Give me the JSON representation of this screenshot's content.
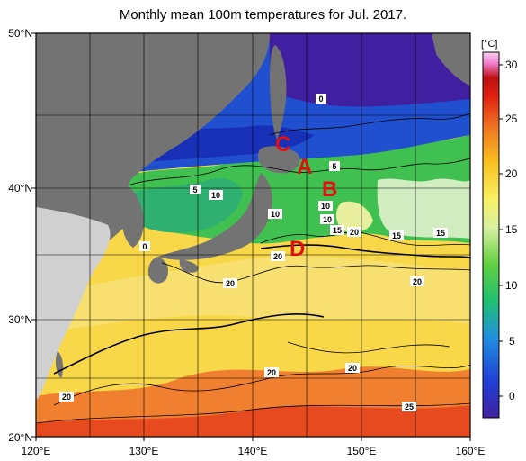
{
  "title": "Monthly mean 100m temperatures for Jul. 2017.",
  "lat_labels": [
    "50°N",
    "40°N",
    "30°N",
    "20°N"
  ],
  "lon_labels": [
    "120°E",
    "130°E",
    "140°E",
    "150°E",
    "160°E"
  ],
  "colorbar": {
    "unit": "[°C]",
    "ticks": [
      "30",
      "25",
      "20",
      "15",
      "10",
      "5",
      "0"
    ],
    "colors": [
      "#4020a0",
      "#2050e0",
      "#20a0d8",
      "#20c060",
      "#a0e040",
      "#f8f060",
      "#f8c020",
      "#f07020",
      "#e02010",
      "#c01010",
      "#f080d0",
      "#f8d0f0"
    ]
  },
  "contour_labels": [
    "0",
    "5",
    "5",
    "10",
    "10",
    "10",
    "10",
    "15",
    "15",
    "15",
    "20",
    "20",
    "20",
    "20",
    "20",
    "20",
    "25",
    "0"
  ],
  "markers": [
    "C",
    "A",
    "B",
    "D"
  ]
}
